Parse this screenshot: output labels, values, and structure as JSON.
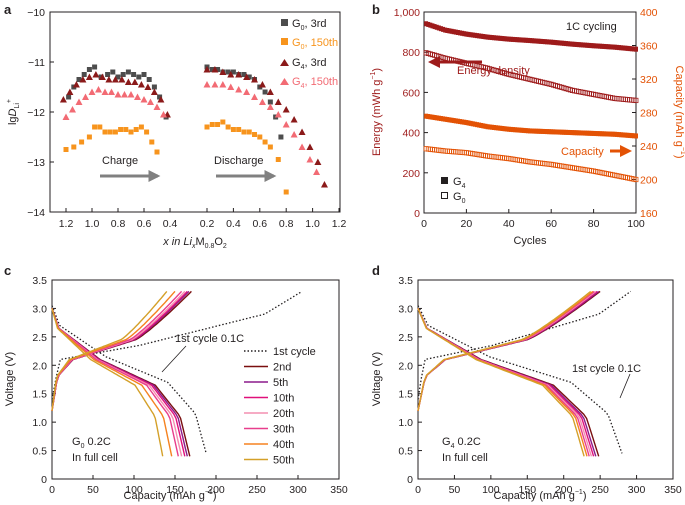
{
  "figure": {
    "panel_labels": [
      "a",
      "b",
      "c",
      "d"
    ]
  },
  "colors": {
    "axis": "#231f20",
    "g0_3rd": "#4d4d4d",
    "g0_150th": "#f7941d",
    "g4_3rd": "#8b1a1a",
    "g4_150th": "#f26b74",
    "energy": "#9e1b1b",
    "capacity": "#e35205",
    "arrow": "#808080",
    "cycle_1st": "#231f20",
    "cycle_2nd": "#7a0f0f",
    "cycle_5th": "#8b1a8b",
    "cycle_10th": "#e0107a",
    "cycle_20th": "#f48fb1",
    "cycle_30th": "#e83e8c",
    "cycle_40th": "#f58220",
    "cycle_50th": "#d4a029"
  },
  "chart_data": [
    {
      "id": "a",
      "type": "scatter",
      "ylabel": "lgD̃Li+",
      "ylabel_main": "lg",
      "ylabel_D": "D",
      "ylabel_sub": "Li",
      "ylabel_sup": "+",
      "xlabel_prefix": "x in Li",
      "xlabel_sub1": "x",
      "xlabel_mid": "M",
      "xlabel_sub2": "0.8",
      "xlabel_end": "O",
      "xlabel_sub3": "2",
      "ylim": [
        -14,
        -10
      ],
      "yticks": [
        "−10",
        "−11",
        "−12",
        "−13",
        "−14"
      ],
      "charge_xticks": [
        "1.2",
        "1.0",
        "0.8",
        "0.6",
        "0.4"
      ],
      "discharge_xticks": [
        "0.2",
        "0.4",
        "0.6",
        "0.8",
        "1.0",
        "1.2"
      ],
      "annotations": {
        "charge": "Charge",
        "discharge": "Discharge"
      },
      "legend": [
        {
          "label_main": "G",
          "label_sub": "0",
          "label_rest": ", 3rd",
          "marker": "square",
          "color_key": "g0_3rd"
        },
        {
          "label_main": "G",
          "label_sub": "0",
          "label_rest": ", 150th",
          "marker": "square",
          "color_key": "g0_150th"
        },
        {
          "label_main": "G",
          "label_sub": "4",
          "label_rest": ", 3rd",
          "marker": "triangle",
          "color_key": "g4_3rd"
        },
        {
          "label_main": "G",
          "label_sub": "4",
          "label_rest": ", 150th",
          "marker": "triangle",
          "color_key": "g4_150th"
        }
      ],
      "series": [
        {
          "name": "G0, 3rd",
          "segment": "charge",
          "marker": "square",
          "color_key": "g0_3rd",
          "x": [
            1.18,
            1.14,
            1.1,
            1.06,
            1.02,
            0.98,
            0.93,
            0.88,
            0.84,
            0.8,
            0.76,
            0.72,
            0.68,
            0.64,
            0.6,
            0.56,
            0.52,
            0.48,
            0.43
          ],
          "y": [
            -11.7,
            -11.5,
            -11.35,
            -11.25,
            -11.15,
            -11.1,
            -11.3,
            -11.25,
            -11.2,
            -11.3,
            -11.25,
            -11.2,
            -11.25,
            -11.3,
            -11.25,
            -11.35,
            -11.5,
            -11.7,
            -12.1
          ]
        },
        {
          "name": "G0, 3rd",
          "segment": "discharge",
          "marker": "square",
          "color_key": "g0_3rd",
          "x": [
            0.2,
            0.24,
            0.28,
            0.32,
            0.36,
            0.4,
            0.44,
            0.48,
            0.52,
            0.56,
            0.6,
            0.64,
            0.68,
            0.72,
            0.76
          ],
          "y": [
            -11.1,
            -11.15,
            -11.15,
            -11.2,
            -11.2,
            -11.2,
            -11.25,
            -11.25,
            -11.3,
            -11.35,
            -11.5,
            -11.6,
            -11.8,
            -12.1,
            -12.5
          ]
        },
        {
          "name": "G0, 150th",
          "segment": "charge",
          "marker": "square",
          "color_key": "g0_150th",
          "x": [
            1.2,
            1.14,
            1.08,
            1.02,
            0.98,
            0.94,
            0.9,
            0.86,
            0.82,
            0.78,
            0.74,
            0.7,
            0.66,
            0.62,
            0.58,
            0.54,
            0.5
          ],
          "y": [
            -12.75,
            -12.7,
            -12.6,
            -12.5,
            -12.3,
            -12.3,
            -12.4,
            -12.4,
            -12.4,
            -12.35,
            -12.35,
            -12.4,
            -12.35,
            -12.3,
            -12.4,
            -12.6,
            -12.8
          ]
        },
        {
          "name": "G0, 150th",
          "segment": "discharge",
          "marker": "square",
          "color_key": "g0_150th",
          "x": [
            0.2,
            0.24,
            0.28,
            0.32,
            0.36,
            0.4,
            0.44,
            0.48,
            0.52,
            0.56,
            0.6,
            0.64,
            0.68,
            0.74,
            0.8
          ],
          "y": [
            -12.3,
            -12.25,
            -12.25,
            -12.2,
            -12.3,
            -12.35,
            -12.35,
            -12.4,
            -12.4,
            -12.45,
            -12.5,
            -12.6,
            -12.7,
            -12.95,
            -13.6
          ]
        },
        {
          "name": "G4, 3rd",
          "segment": "charge",
          "marker": "triangle",
          "color_key": "g4_3rd",
          "x": [
            1.22,
            1.17,
            1.12,
            1.07,
            1.02,
            0.97,
            0.92,
            0.87,
            0.82,
            0.77,
            0.72,
            0.67,
            0.62,
            0.57,
            0.52,
            0.47,
            0.42
          ],
          "y": [
            -11.75,
            -11.6,
            -11.45,
            -11.35,
            -11.3,
            -11.25,
            -11.3,
            -11.35,
            -11.35,
            -11.35,
            -11.4,
            -11.4,
            -11.45,
            -11.5,
            -11.6,
            -11.75,
            -12.05
          ]
        },
        {
          "name": "G4, 3rd",
          "segment": "discharge",
          "marker": "triangle",
          "color_key": "g4_3rd",
          "x": [
            0.2,
            0.26,
            0.32,
            0.38,
            0.44,
            0.5,
            0.56,
            0.62,
            0.68,
            0.74,
            0.8,
            0.86,
            0.92,
            0.98,
            1.04,
            1.09
          ],
          "y": [
            -11.15,
            -11.15,
            -11.2,
            -11.25,
            -11.25,
            -11.3,
            -11.35,
            -11.45,
            -11.6,
            -11.8,
            -11.95,
            -12.15,
            -12.4,
            -12.7,
            -13.0,
            -13.45
          ]
        },
        {
          "name": "G4, 150th",
          "segment": "charge",
          "marker": "triangle",
          "color_key": "g4_150th",
          "x": [
            1.2,
            1.15,
            1.1,
            1.05,
            1.0,
            0.95,
            0.9,
            0.85,
            0.8,
            0.75,
            0.7,
            0.65,
            0.6,
            0.55,
            0.5,
            0.45
          ],
          "y": [
            -12.1,
            -11.95,
            -11.8,
            -11.7,
            -11.6,
            -11.55,
            -11.6,
            -11.6,
            -11.65,
            -11.65,
            -11.65,
            -11.7,
            -11.75,
            -11.8,
            -11.9,
            -12.05
          ]
        },
        {
          "name": "G4, 150th",
          "segment": "discharge",
          "marker": "triangle",
          "color_key": "g4_150th",
          "x": [
            0.2,
            0.26,
            0.32,
            0.38,
            0.44,
            0.5,
            0.56,
            0.62,
            0.68,
            0.74,
            0.8,
            0.86,
            0.92,
            0.98,
            1.03
          ],
          "y": [
            -11.45,
            -11.45,
            -11.45,
            -11.5,
            -11.55,
            -11.6,
            -11.7,
            -11.8,
            -11.9,
            -12.05,
            -12.25,
            -12.45,
            -12.7,
            -12.95,
            -13.2
          ]
        }
      ]
    },
    {
      "id": "b",
      "type": "scatter",
      "title": "1C cycling",
      "xlabel": "Cycles",
      "xlim": [
        0,
        100
      ],
      "xticks": [
        "0",
        "20",
        "40",
        "60",
        "80",
        "100"
      ],
      "ylabel_left_main": "Energy (mWh g",
      "ylabel_left_sup": "−1",
      "ylabel_left_end": ")",
      "ylim_left": [
        0,
        1000
      ],
      "yticks_left": [
        "0",
        "200",
        "400",
        "600",
        "800",
        "1,000"
      ],
      "ylabel_right_main": "Capacity (mAh g",
      "ylabel_right_sup": "−1",
      "ylabel_right_end": ")",
      "ylim_right": [
        160,
        400
      ],
      "yticks_right": [
        "160",
        "200",
        "240",
        "280",
        "320",
        "360",
        "400"
      ],
      "annotations": {
        "energy": "Energy density",
        "capacity": "Capacity"
      },
      "legend": [
        {
          "label_main": "G",
          "label_sub": "4",
          "marker": "filled-square"
        },
        {
          "label_main": "G",
          "label_sub": "0",
          "marker": "open-square"
        }
      ],
      "series": [
        {
          "name": "G4 energy",
          "axis": "left",
          "filled": true,
          "color_key": "energy",
          "x": [
            0,
            10,
            20,
            30,
            40,
            50,
            60,
            70,
            80,
            90,
            100
          ],
          "y": [
            945,
            910,
            890,
            875,
            865,
            858,
            850,
            840,
            832,
            825,
            815
          ]
        },
        {
          "name": "G0 energy",
          "axis": "left",
          "filled": false,
          "color_key": "energy",
          "x": [
            0,
            10,
            20,
            30,
            40,
            50,
            60,
            70,
            80,
            90,
            100
          ],
          "y": [
            800,
            770,
            745,
            720,
            690,
            665,
            640,
            610,
            590,
            570,
            560
          ]
        },
        {
          "name": "G4 capacity",
          "axis": "right",
          "filled": true,
          "color_key": "capacity",
          "x": [
            0,
            10,
            20,
            30,
            40,
            50,
            60,
            70,
            80,
            90,
            100
          ],
          "y": [
            276,
            272,
            268,
            263,
            260,
            258,
            257,
            256,
            255,
            254,
            252
          ]
        },
        {
          "name": "G0 capacity",
          "axis": "right",
          "filled": false,
          "color_key": "capacity",
          "x": [
            0,
            10,
            20,
            30,
            40,
            50,
            60,
            70,
            80,
            90,
            100
          ],
          "y": [
            237,
            234,
            232,
            228,
            225,
            221,
            218,
            214,
            210,
            205,
            200
          ]
        }
      ]
    },
    {
      "id": "c",
      "type": "line",
      "xlabel_main": "Capacity (mAh g",
      "xlabel_sup": "−1",
      "xlabel_end": ")",
      "ylabel": "Voltage (V)",
      "xlim": [
        0,
        350
      ],
      "ylim": [
        0,
        3.5
      ],
      "xticks": [
        "0",
        "50",
        "100",
        "150",
        "200",
        "250",
        "300",
        "350"
      ],
      "yticks": [
        "0",
        "0.5",
        "1.0",
        "1.5",
        "2.0",
        "2.5",
        "3.0",
        "3.5"
      ],
      "annotation": "1st cycle 0.1C",
      "note_line1_main": "G",
      "note_line1_sub": "0",
      "note_line1_rest": " 0.2C",
      "note_line2": "In full cell",
      "legend": [
        "1st cycle",
        "2nd",
        "5th",
        "10th",
        "20th",
        "30th",
        "40th",
        "50th"
      ],
      "series": [
        {
          "name": "1st cycle",
          "charge_end": 305,
          "discharge_end": 188
        },
        {
          "name": "2nd",
          "charge_end": 170,
          "discharge_end": 168
        },
        {
          "name": "5th",
          "charge_end": 167,
          "discharge_end": 165
        },
        {
          "name": "10th",
          "charge_end": 165,
          "discharge_end": 162
        },
        {
          "name": "20th",
          "charge_end": 162,
          "discharge_end": 158
        },
        {
          "name": "30th",
          "charge_end": 158,
          "discharge_end": 154
        },
        {
          "name": "40th",
          "charge_end": 150,
          "discharge_end": 146
        },
        {
          "name": "50th",
          "charge_end": 140,
          "discharge_end": 135
        }
      ]
    },
    {
      "id": "d",
      "type": "line",
      "xlabel_main": "Capacity (mAh g",
      "xlabel_sup": "−1",
      "xlabel_end": ")",
      "ylabel": "Voltage (V)",
      "xlim": [
        0,
        350
      ],
      "ylim": [
        0,
        3.5
      ],
      "xticks": [
        "0",
        "50",
        "100",
        "150",
        "200",
        "250",
        "300",
        "350"
      ],
      "yticks": [
        "0",
        "0.5",
        "1.0",
        "1.5",
        "2.0",
        "2.5",
        "3.0",
        "3.5"
      ],
      "annotation": "1st cycle 0.1C",
      "note_line1_main": "G",
      "note_line1_sub": "4",
      "note_line1_rest": " 0.2C",
      "note_line2": "In full cell",
      "series": [
        {
          "name": "1st cycle",
          "charge_end": 292,
          "discharge_end": 280
        },
        {
          "name": "2nd",
          "charge_end": 250,
          "discharge_end": 248
        },
        {
          "name": "5th",
          "charge_end": 248,
          "discharge_end": 244
        },
        {
          "name": "10th",
          "charge_end": 246,
          "discharge_end": 241
        },
        {
          "name": "20th",
          "charge_end": 244,
          "discharge_end": 238
        },
        {
          "name": "30th",
          "charge_end": 242,
          "discharge_end": 235
        },
        {
          "name": "40th",
          "charge_end": 240,
          "discharge_end": 232
        },
        {
          "name": "50th",
          "charge_end": 237,
          "discharge_end": 228
        }
      ]
    }
  ]
}
